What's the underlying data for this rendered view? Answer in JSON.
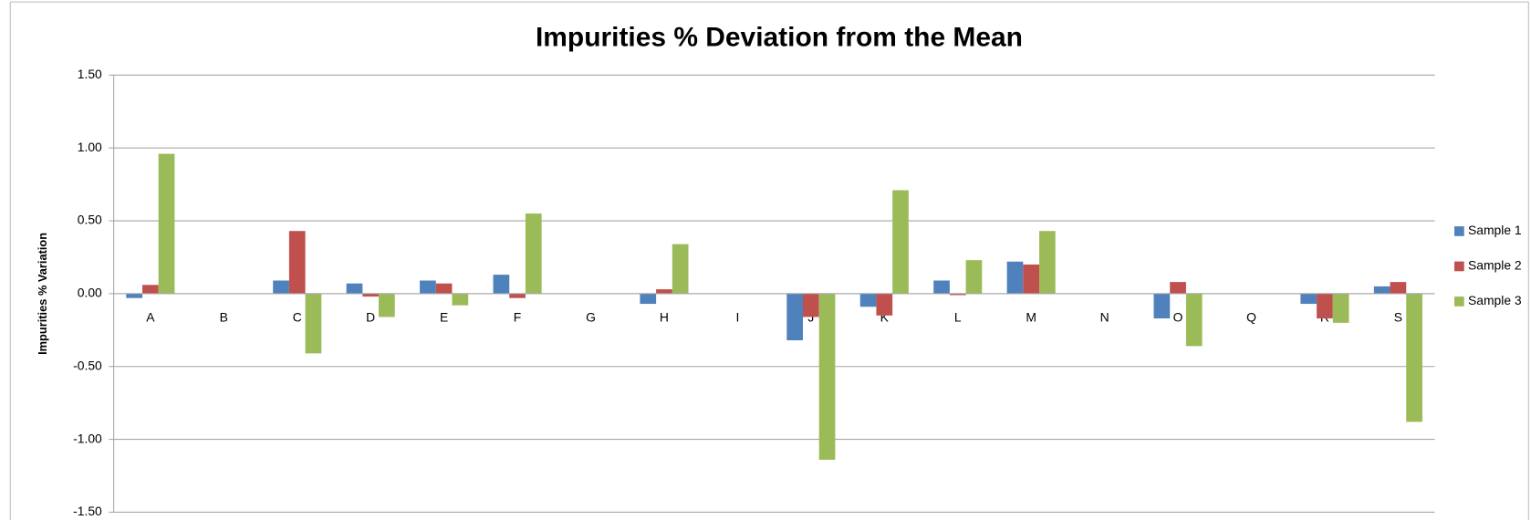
{
  "chart_data": {
    "type": "bar",
    "title": "Impurities % Deviation from the Mean",
    "y_label": "Impurities % Variation",
    "categories": [
      "A",
      "B",
      "C",
      "D",
      "E",
      "F",
      "G",
      "H",
      "I",
      "J",
      "K",
      "L",
      "M",
      "N",
      "O",
      "Q",
      "R",
      "S"
    ],
    "series": [
      {
        "name": "Sample 1",
        "color": "#4f81bd",
        "values": [
          -0.03,
          0,
          0.09,
          0.07,
          0.09,
          0.13,
          0,
          -0.07,
          0,
          -0.32,
          -0.09,
          0.09,
          0.22,
          0,
          -0.17,
          0,
          -0.07,
          0.05
        ]
      },
      {
        "name": "Sample 2",
        "color": "#c0504d",
        "values": [
          0.06,
          0,
          0.43,
          -0.02,
          0.07,
          -0.03,
          0,
          0.03,
          0,
          -0.16,
          -0.15,
          -0.01,
          0.2,
          0,
          0.08,
          0,
          -0.17,
          0.08
        ]
      },
      {
        "name": "Sample 3",
        "color": "#9bbb59",
        "values": [
          0.96,
          0,
          -0.41,
          -0.16,
          -0.08,
          0.55,
          0,
          0.34,
          0,
          -1.14,
          0.71,
          0.23,
          0.43,
          0,
          -0.36,
          0,
          -0.2,
          -0.88
        ]
      }
    ],
    "ylim": [
      -1.5,
      1.5
    ],
    "yticks": [
      {
        "value": -1.5,
        "label": "-1.50"
      },
      {
        "value": -1,
        "label": "-1.00"
      },
      {
        "value": -0.5,
        "label": "-0.50"
      },
      {
        "value": 0,
        "label": "0.00"
      },
      {
        "value": 0.5,
        "label": "0.50"
      },
      {
        "value": 1,
        "label": "1.00"
      },
      {
        "value": 1.5,
        "label": "1.50"
      }
    ],
    "grid": true,
    "legend": "right"
  }
}
